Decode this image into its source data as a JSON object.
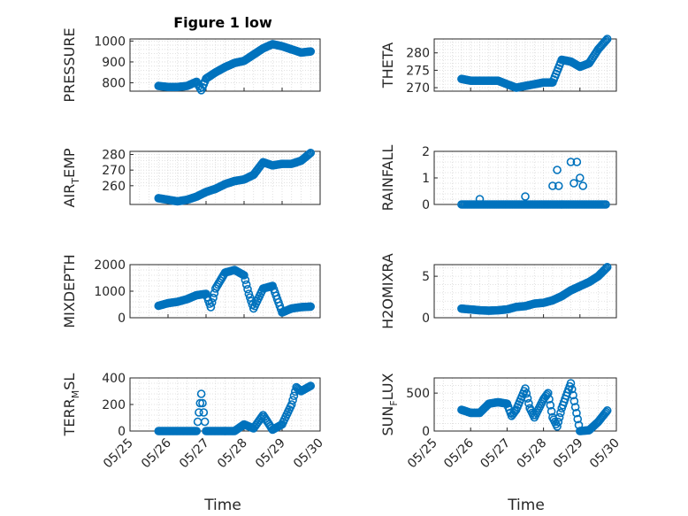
{
  "figure": {
    "title": "Figure 1 low",
    "marker_color": "#0072BD",
    "background": "#ffffff"
  },
  "chart_data": [
    {
      "type": "scatter",
      "title": "Figure 1 low",
      "ylabel": "PRESSURE",
      "xlim": [
        "05/25",
        "05/30"
      ],
      "ylim": [
        760,
        1010
      ],
      "yticks": [
        800,
        900,
        1000
      ],
      "grid": true,
      "x": [
        "05/25 18:00",
        "05/26 00:00",
        "05/26 06:00",
        "05/26 12:00",
        "05/26 18:00",
        "05/26 21:00",
        "05/27 00:00",
        "05/27 06:00",
        "05/27 12:00",
        "05/27 18:00",
        "05/28 00:00",
        "05/28 06:00",
        "05/28 12:00",
        "05/28 18:00",
        "05/29 00:00",
        "05/29 06:00",
        "05/29 12:00",
        "05/29 18:00"
      ],
      "y": [
        785,
        780,
        780,
        785,
        805,
        765,
        820,
        850,
        875,
        895,
        905,
        935,
        965,
        985,
        975,
        960,
        945,
        950
      ]
    },
    {
      "type": "scatter",
      "ylabel": "THETA",
      "xlim": [
        "05/25",
        "05/30"
      ],
      "ylim": [
        269,
        284
      ],
      "yticks": [
        270,
        275,
        280
      ],
      "grid": true,
      "x": [
        "05/25 18:00",
        "05/26 00:00",
        "05/26 06:00",
        "05/26 12:00",
        "05/26 18:00",
        "05/27 00:00",
        "05/27 06:00",
        "05/27 12:00",
        "05/27 18:00",
        "05/28 00:00",
        "05/28 06:00",
        "05/28 12:00",
        "05/28 18:00",
        "05/29 00:00",
        "05/29 06:00",
        "05/29 12:00",
        "05/29 18:00"
      ],
      "y": [
        272.5,
        272,
        272,
        272,
        272,
        271,
        270,
        270.5,
        271,
        271.5,
        271.5,
        278,
        277.5,
        276,
        277,
        281,
        284
      ]
    },
    {
      "type": "scatter",
      "ylabel": "AIR_TEMP",
      "ylabel_main": "AIR",
      "ylabel_sub": "T",
      "ylabel_tail": "EMP",
      "xlim": [
        "05/25",
        "05/30"
      ],
      "ylim": [
        248,
        282
      ],
      "yticks": [
        260,
        270,
        280
      ],
      "grid": true,
      "x": [
        "05/25 18:00",
        "05/26 00:00",
        "05/26 06:00",
        "05/26 12:00",
        "05/26 18:00",
        "05/27 00:00",
        "05/27 06:00",
        "05/27 12:00",
        "05/27 18:00",
        "05/28 00:00",
        "05/28 06:00",
        "05/28 12:00",
        "05/28 18:00",
        "05/29 00:00",
        "05/29 06:00",
        "05/29 12:00",
        "05/29 18:00"
      ],
      "y": [
        252,
        251,
        250,
        251,
        253,
        256,
        258,
        261,
        263,
        264,
        267,
        275,
        273,
        274,
        274,
        276,
        281
      ]
    },
    {
      "type": "scatter",
      "ylabel": "RAINFALL",
      "xlim": [
        "05/25",
        "05/30"
      ],
      "ylim": [
        0,
        2
      ],
      "yticks": [
        0,
        1,
        2
      ],
      "grid": true,
      "x": [
        "05/25 18:00",
        "05/26 00:00",
        "05/26 06:00",
        "05/26 12:00",
        "05/27 00:00",
        "05/27 12:00",
        "05/28 00:00",
        "05/28 06:00",
        "05/28 09:00",
        "05/28 12:00",
        "05/28 18:00",
        "05/29 00:00",
        "05/29 06:00",
        "05/29 12:00",
        "05/29 18:00",
        "05/28 10:00",
        "05/28 20:00",
        "05/28 22:00",
        "05/29 02:00"
      ],
      "y": [
        0,
        0,
        0.2,
        0,
        0,
        0.3,
        0,
        0.7,
        1.3,
        0,
        1.6,
        1.0,
        0,
        0,
        0,
        0.7,
        0.8,
        1.6,
        0.7
      ]
    },
    {
      "type": "scatter",
      "ylabel": "MIXDEPTH",
      "xlim": [
        "05/25",
        "05/30"
      ],
      "ylim": [
        0,
        2000
      ],
      "yticks": [
        0,
        1000,
        2000
      ],
      "grid": true,
      "x": [
        "05/25 18:00",
        "05/26 00:00",
        "05/26 06:00",
        "05/26 12:00",
        "05/26 18:00",
        "05/27 00:00",
        "05/27 03:00",
        "05/27 06:00",
        "05/27 12:00",
        "05/27 18:00",
        "05/28 00:00",
        "05/28 03:00",
        "05/28 06:00",
        "05/28 12:00",
        "05/28 18:00",
        "05/29 00:00",
        "05/29 06:00",
        "05/29 12:00",
        "05/29 18:00"
      ],
      "y": [
        450,
        550,
        600,
        700,
        850,
        900,
        400,
        1100,
        1700,
        1800,
        1600,
        900,
        350,
        1100,
        1200,
        200,
        350,
        400,
        420
      ]
    },
    {
      "type": "scatter",
      "ylabel": "H2OMIXRA",
      "xlim": [
        "05/25",
        "05/30"
      ],
      "ylim": [
        0,
        6.4
      ],
      "yticks": [
        0,
        5
      ],
      "grid": true,
      "x": [
        "05/25 18:00",
        "05/26 00:00",
        "05/26 06:00",
        "05/26 12:00",
        "05/26 18:00",
        "05/27 00:00",
        "05/27 06:00",
        "05/27 12:00",
        "05/27 18:00",
        "05/28 00:00",
        "05/28 06:00",
        "05/28 12:00",
        "05/28 18:00",
        "05/29 00:00",
        "05/29 06:00",
        "05/29 12:00",
        "05/29 18:00"
      ],
      "y": [
        1.1,
        1.0,
        0.9,
        0.85,
        0.9,
        1.0,
        1.3,
        1.4,
        1.7,
        1.8,
        2.1,
        2.6,
        3.3,
        3.8,
        4.3,
        5.0,
        6.1
      ]
    },
    {
      "type": "scatter",
      "ylabel": "TERR_MSL",
      "ylabel_main": "TERR",
      "ylabel_sub": "M",
      "ylabel_tail": "SL",
      "xlim": [
        "05/25",
        "05/30"
      ],
      "ylim": [
        0,
        400
      ],
      "yticks": [
        0,
        200,
        400
      ],
      "grid": true,
      "x": [
        "05/25 18:00",
        "05/26 00:00",
        "05/26 06:00",
        "05/26 12:00",
        "05/26 18:00",
        "05/26 21:00",
        "05/27 00:00",
        "05/27 06:00",
        "05/27 12:00",
        "05/27 18:00",
        "05/28 00:00",
        "05/28 06:00",
        "05/28 12:00",
        "05/28 18:00",
        "05/29 00:00",
        "05/29 06:00",
        "05/29 09:00",
        "05/29 12:00",
        "05/29 18:00"
      ],
      "y": [
        0,
        0,
        0,
        0,
        0,
        280,
        0,
        0,
        0,
        0,
        50,
        20,
        120,
        10,
        50,
        200,
        330,
        300,
        340
      ]
    },
    {
      "type": "scatter",
      "ylabel": "SUN_FLUX",
      "ylabel_main": "SUN",
      "ylabel_sub": "F",
      "ylabel_tail": "LUX",
      "xlim": [
        "05/25",
        "05/30"
      ],
      "ylim": [
        0,
        700
      ],
      "yticks": [
        0,
        500
      ],
      "grid": true,
      "x": [
        "05/25 18:00",
        "05/26 00:00",
        "05/26 06:00",
        "05/26 12:00",
        "05/26 18:00",
        "05/27 00:00",
        "05/27 03:00",
        "05/27 06:00",
        "05/27 12:00",
        "05/27 15:00",
        "05/27 18:00",
        "05/28 00:00",
        "05/28 03:00",
        "05/28 06:00",
        "05/28 09:00",
        "05/28 12:00",
        "05/28 18:00",
        "05/29 00:00",
        "05/29 06:00",
        "05/29 12:00",
        "05/29 18:00"
      ],
      "y": [
        280,
        240,
        240,
        360,
        380,
        360,
        200,
        280,
        560,
        300,
        180,
        420,
        500,
        180,
        60,
        300,
        630,
        0,
        10,
        120,
        270
      ]
    }
  ],
  "axes_common": {
    "xticks": [
      "05/25",
      "05/26",
      "05/27",
      "05/28",
      "05/29",
      "05/30"
    ],
    "xlabel": "Time"
  }
}
